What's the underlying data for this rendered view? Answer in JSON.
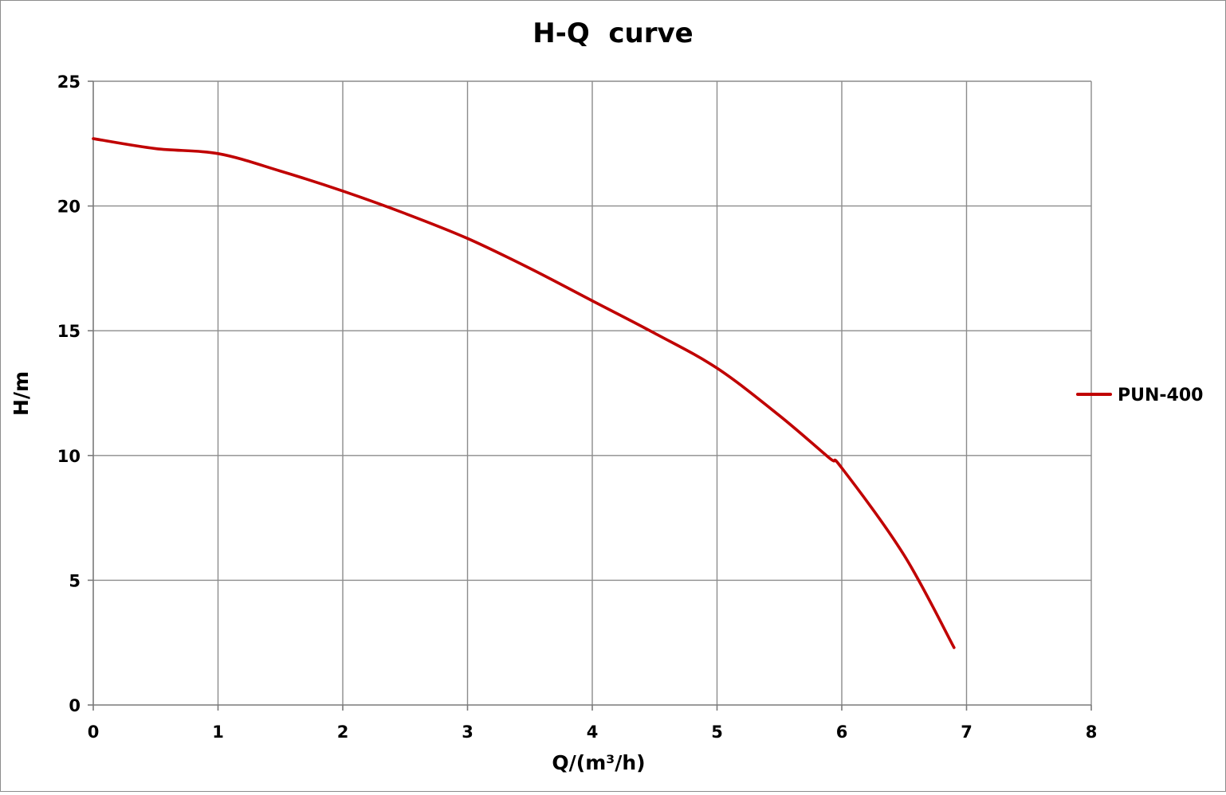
{
  "chart_data": {
    "type": "line",
    "title": "H-Q  curve",
    "xlabel": "Q/(m³/h)",
    "ylabel": "H/m",
    "xlim": [
      0,
      8
    ],
    "ylim": [
      0,
      25
    ],
    "xticks": [
      0,
      1,
      2,
      3,
      4,
      5,
      6,
      7,
      8
    ],
    "yticks": [
      0,
      5,
      10,
      15,
      20,
      25
    ],
    "xtick_labels": [
      "0",
      "1",
      "2",
      "3",
      "4",
      "5",
      "6",
      "7",
      "8"
    ],
    "ytick_labels": [
      "0",
      "5",
      "10",
      "15",
      "20",
      "25"
    ],
    "grid": true,
    "legend_position": "right",
    "series": [
      {
        "name": "PUN-400",
        "color": "#c00000",
        "x": [
          0,
          0.5,
          1,
          1.5,
          2,
          2.5,
          3,
          3.5,
          4,
          4.5,
          5,
          5.5,
          5.9,
          6,
          6.5,
          6.9
        ],
        "y": [
          22.7,
          22.3,
          22.1,
          21.4,
          20.6,
          19.7,
          18.7,
          17.5,
          16.2,
          14.9,
          13.5,
          11.6,
          9.9,
          9.5,
          6.0,
          2.3
        ]
      }
    ]
  }
}
